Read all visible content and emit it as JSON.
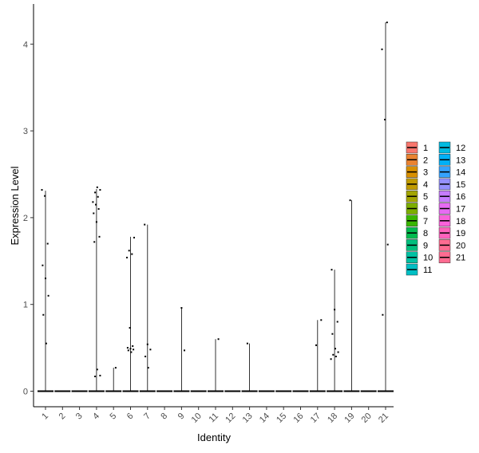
{
  "chart_data": {
    "type": "violin",
    "title": "",
    "xlabel": "Identity",
    "ylabel": "Expression Level",
    "ylim": [
      -0.2,
      4.35
    ],
    "y_ticks": [
      0,
      1,
      2,
      3,
      4
    ],
    "grid": false,
    "legend_placement": "right",
    "categories": [
      "1",
      "2",
      "3",
      "4",
      "5",
      "6",
      "7",
      "8",
      "9",
      "10",
      "11",
      "12",
      "13",
      "14",
      "15",
      "16",
      "17",
      "18",
      "19",
      "20",
      "21"
    ],
    "colors": [
      "#F8766D",
      "#EA8331",
      "#D89000",
      "#C09B00",
      "#A3A500",
      "#7CAE00",
      "#39B600",
      "#00BB4E",
      "#00BF7D",
      "#00C1A3",
      "#00BFC4",
      "#00BAE0",
      "#00B0F6",
      "#35A2FF",
      "#9590FF",
      "#C77CFF",
      "#E76BF3",
      "#FA62DB",
      "#FF62BC",
      "#FF6C91",
      "#FF6C91"
    ],
    "max_values": [
      2.31,
      0,
      0,
      2.33,
      0.27,
      1.78,
      1.92,
      0,
      0.96,
      0,
      0.6,
      0,
      0.55,
      0,
      0,
      0,
      0.82,
      1.4,
      2.2,
      0,
      4.25
    ],
    "points": [
      {
        "cat": "1",
        "values": [
          2.32,
          2.25,
          1.7,
          1.45,
          1.3,
          1.1,
          0.88,
          0.55
        ]
      },
      {
        "cat": "4",
        "values": [
          2.35,
          2.32,
          2.29,
          2.24,
          2.18,
          2.15,
          2.1,
          2.05,
          1.95,
          1.78,
          1.72,
          0.25,
          0.18,
          0.17
        ]
      },
      {
        "cat": "5",
        "values": [
          0.27
        ]
      },
      {
        "cat": "6",
        "values": [
          1.77,
          1.62,
          1.58,
          1.54,
          0.73,
          0.52,
          0.5,
          0.49,
          0.48,
          0.47,
          0.45
        ]
      },
      {
        "cat": "7",
        "values": [
          1.92,
          0.54,
          0.48,
          0.4,
          0.27
        ]
      },
      {
        "cat": "9",
        "values": [
          0.96,
          0.47
        ]
      },
      {
        "cat": "11",
        "values": [
          0.6
        ]
      },
      {
        "cat": "13",
        "values": [
          0.55
        ]
      },
      {
        "cat": "17",
        "values": [
          0.82,
          0.53
        ]
      },
      {
        "cat": "18",
        "values": [
          1.4,
          0.94,
          0.8,
          0.66,
          0.49,
          0.45,
          0.42,
          0.4,
          0.37
        ]
      },
      {
        "cat": "19",
        "values": [
          2.2
        ]
      },
      {
        "cat": "21",
        "values": [
          4.25,
          3.94,
          3.13,
          1.69,
          0.88
        ]
      }
    ]
  }
}
